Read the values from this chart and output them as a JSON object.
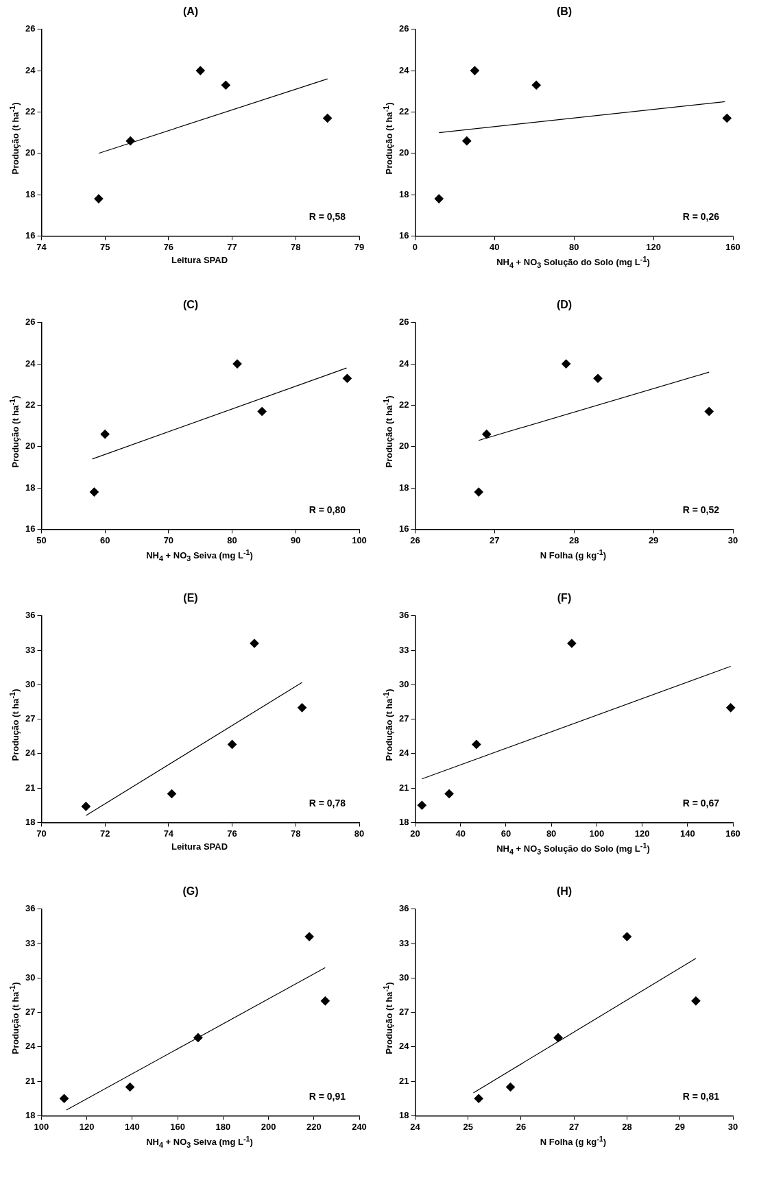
{
  "chart_data": [
    {
      "type": "scatter",
      "title": "(A)",
      "xlabel": "Leitura SPAD",
      "ylabel": "Produção  (t ha$^{-1}$)",
      "xlim": [
        74,
        79
      ],
      "xticks": [
        74,
        75,
        76,
        77,
        78,
        79
      ],
      "ylim": [
        16,
        26
      ],
      "yticks": [
        16,
        18,
        20,
        22,
        24,
        26
      ],
      "grid": false,
      "legend": false,
      "marker": "diamond",
      "annotations": [
        "R = 0,58"
      ],
      "series": [
        {
          "color": "#000000",
          "x": [
            74.9,
            75.4,
            76.5,
            76.9,
            78.5
          ],
          "values": [
            17.8,
            20.6,
            24.0,
            23.3,
            21.7
          ]
        },
        {
          "type": "line",
          "marker": "none",
          "color": "#000000",
          "x": [
            74.9,
            78.5
          ],
          "values": [
            20.0,
            23.6
          ]
        }
      ]
    },
    {
      "type": "scatter",
      "title": "(B)",
      "xlabel": "NH$_{4}$ + NO$_{3}$ Solução do Solo (mg L$^{-1}$)",
      "ylabel": "Produção  (t ha$^{-1}$)",
      "xlim": [
        0,
        160
      ],
      "xticks": [
        0,
        40,
        80,
        120,
        160
      ],
      "ylim": [
        16,
        26
      ],
      "yticks": [
        16,
        18,
        20,
        22,
        24,
        26
      ],
      "grid": false,
      "legend": false,
      "marker": "diamond",
      "annotations": [
        "R = 0,26"
      ],
      "series": [
        {
          "color": "#000000",
          "x": [
            12,
            26,
            30,
            61,
            157
          ],
          "values": [
            17.8,
            20.6,
            24.0,
            23.3,
            21.7
          ]
        },
        {
          "type": "line",
          "marker": "none",
          "color": "#000000",
          "x": [
            12,
            156
          ],
          "values": [
            21.0,
            22.5
          ]
        }
      ]
    },
    {
      "type": "scatter",
      "title": "(C)",
      "xlabel": "NH$_{4}$ + NO$_{3}$ Seiva (mg L$^{-1}$)",
      "ylabel": "Produção  (t ha$^{-1}$)",
      "xlim": [
        50,
        100
      ],
      "xticks": [
        50,
        60,
        70,
        80,
        90,
        100
      ],
      "ylim": [
        16,
        26
      ],
      "yticks": [
        16,
        18,
        20,
        22,
        24,
        26
      ],
      "grid": false,
      "legend": false,
      "marker": "diamond",
      "annotations": [
        "R = 0,80"
      ],
      "series": [
        {
          "color": "#000000",
          "x": [
            58.3,
            60,
            80.8,
            84.7,
            98.1
          ],
          "values": [
            17.8,
            20.6,
            24.0,
            21.7,
            23.3
          ]
        },
        {
          "type": "line",
          "marker": "none",
          "color": "#000000",
          "x": [
            58,
            98
          ],
          "values": [
            19.4,
            23.8
          ]
        }
      ]
    },
    {
      "type": "scatter",
      "title": "(D)",
      "xlabel": "N Folha (g kg$^{-1}$)",
      "ylabel": "Produção  (t ha$^{-1}$)",
      "xlim": [
        26,
        30
      ],
      "xticks": [
        26,
        27,
        28,
        29,
        30
      ],
      "ylim": [
        16,
        26
      ],
      "yticks": [
        16,
        18,
        20,
        22,
        24,
        26
      ],
      "grid": false,
      "legend": false,
      "marker": "diamond",
      "annotations": [
        "R = 0,52"
      ],
      "series": [
        {
          "color": "#000000",
          "x": [
            26.8,
            26.9,
            27.9,
            28.3,
            29.7
          ],
          "values": [
            17.8,
            20.6,
            24.0,
            23.3,
            21.7
          ]
        },
        {
          "type": "line",
          "marker": "none",
          "color": "#000000",
          "x": [
            26.8,
            29.7
          ],
          "values": [
            20.3,
            23.6
          ]
        }
      ]
    },
    {
      "type": "scatter",
      "title": "(E)",
      "xlabel": "Leitura SPAD",
      "ylabel": "Produção  (t ha$^{-1}$)",
      "xlim": [
        70,
        80
      ],
      "xticks": [
        70,
        72,
        74,
        76,
        78,
        80
      ],
      "ylim": [
        18,
        36
      ],
      "yticks": [
        18,
        21,
        24,
        27,
        30,
        33,
        36
      ],
      "grid": false,
      "legend": false,
      "marker": "diamond",
      "annotations": [
        "R = 0,78"
      ],
      "series": [
        {
          "color": "#000000",
          "x": [
            71.4,
            74.1,
            76,
            76.7,
            78.2
          ],
          "values": [
            19.4,
            20.5,
            24.8,
            33.6,
            28.0
          ]
        },
        {
          "type": "line",
          "marker": "none",
          "color": "#000000",
          "x": [
            71.4,
            78.2
          ],
          "values": [
            18.6,
            30.2
          ]
        }
      ]
    },
    {
      "type": "scatter",
      "title": "(F)",
      "xlabel": "NH$_{4}$ + NO$_{3}$ Solução do Solo (mg L$^{-1}$)",
      "ylabel": "Produção  (t ha$^{-1}$)",
      "xlim": [
        20,
        160
      ],
      "xticks": [
        20,
        40,
        60,
        80,
        100,
        120,
        140,
        160
      ],
      "ylim": [
        18,
        36
      ],
      "yticks": [
        18,
        21,
        24,
        27,
        30,
        33,
        36
      ],
      "grid": false,
      "legend": false,
      "marker": "diamond",
      "annotations": [
        "R = 0,67"
      ],
      "series": [
        {
          "color": "#000000",
          "x": [
            23,
            35,
            47,
            89,
            159
          ],
          "values": [
            19.5,
            20.5,
            24.8,
            33.6,
            28.0
          ]
        },
        {
          "type": "line",
          "marker": "none",
          "color": "#000000",
          "x": [
            23,
            159
          ],
          "values": [
            21.8,
            31.6
          ]
        }
      ]
    },
    {
      "type": "scatter",
      "title": "(G)",
      "xlabel": "NH$_{4}$ + NO$_{3}$ Seiva (mg L$^{-1}$)",
      "ylabel": "Produção  (t ha$^{-1}$)",
      "xlim": [
        100,
        240
      ],
      "xticks": [
        100,
        120,
        140,
        160,
        180,
        200,
        220,
        240
      ],
      "ylim": [
        18,
        36
      ],
      "yticks": [
        18,
        21,
        24,
        27,
        30,
        33,
        36
      ],
      "grid": false,
      "legend": false,
      "marker": "diamond",
      "annotations": [
        "R = 0,91"
      ],
      "series": [
        {
          "color": "#000000",
          "x": [
            110,
            139,
            169,
            218,
            225
          ],
          "values": [
            19.5,
            20.5,
            24.8,
            33.6,
            28.0
          ]
        },
        {
          "type": "line",
          "marker": "none",
          "color": "#000000",
          "x": [
            111,
            225
          ],
          "values": [
            18.5,
            30.9
          ]
        }
      ]
    },
    {
      "type": "scatter",
      "title": "(H)",
      "xlabel": "N Folha (g kg$^{-1}$)",
      "ylabel": "Produção  (t ha$^{-1}$)",
      "xlim": [
        24,
        30
      ],
      "xticks": [
        24,
        25,
        26,
        27,
        28,
        29,
        30
      ],
      "ylim": [
        18,
        36
      ],
      "yticks": [
        18,
        21,
        24,
        27,
        30,
        33,
        36
      ],
      "grid": false,
      "legend": false,
      "marker": "diamond",
      "annotations": [
        "R = 0,81"
      ],
      "series": [
        {
          "color": "#000000",
          "x": [
            25.2,
            25.8,
            26.7,
            28,
            29.3
          ],
          "values": [
            19.5,
            20.5,
            24.8,
            33.6,
            28.0
          ]
        },
        {
          "type": "line",
          "marker": "none",
          "color": "#000000",
          "x": [
            25.1,
            29.3
          ],
          "values": [
            20.0,
            31.7
          ]
        }
      ]
    }
  ]
}
